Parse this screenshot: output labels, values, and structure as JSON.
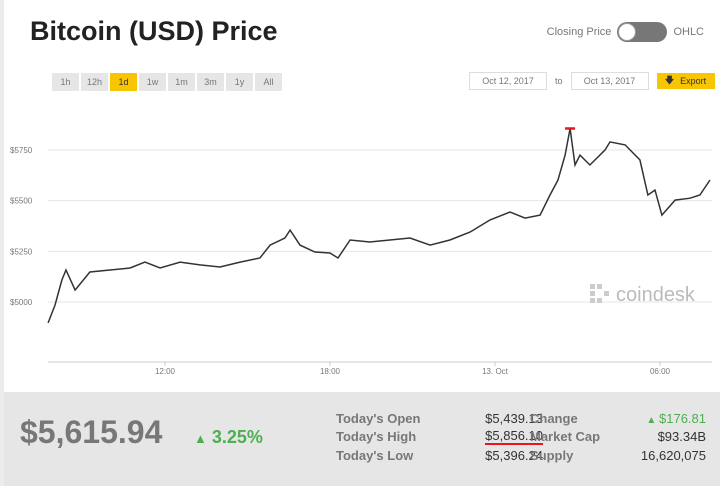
{
  "header": {
    "title": "Bitcoin (USD) Price",
    "toggle_left": "Closing Price",
    "toggle_right": "OHLC"
  },
  "ranges": [
    "1h",
    "12h",
    "1d",
    "1w",
    "1m",
    "3m",
    "1y",
    "All"
  ],
  "active_range": "1d",
  "dates": {
    "from": "Oct 12, 2017",
    "to_label": "to",
    "to": "Oct 13, 2017",
    "export": "Export"
  },
  "watermark": "coindesk",
  "colors": {
    "accent": "#f7c600",
    "up": "#4caf50",
    "highlight": "#e8141e"
  },
  "chart_data": {
    "type": "line",
    "y_ticks": [
      5000,
      5250,
      5500,
      5750
    ],
    "y_tick_labels": [
      "$5000",
      "$5250",
      "$5500",
      "$5750"
    ],
    "x_ticks": [
      12,
      18,
      24,
      30
    ],
    "x_tick_labels": [
      "12:00",
      "18:00",
      "13. Oct",
      "06:00"
    ],
    "xunit": "hours since Oct 12 00:00",
    "x": [
      7.75,
      8.0,
      8.25,
      8.4,
      8.73,
      9.27,
      10.0,
      10.73,
      11.27,
      11.82,
      12.55,
      13.27,
      14.0,
      14.73,
      15.45,
      15.82,
      16.36,
      16.55,
      16.91,
      17.45,
      18.0,
      18.29,
      18.73,
      19.45,
      20.18,
      20.91,
      21.64,
      22.36,
      23.09,
      23.82,
      24.55,
      25.09,
      25.64,
      26.0,
      26.29,
      26.55,
      26.73,
      26.91,
      27.09,
      27.45,
      28.0,
      28.18,
      28.73,
      29.27,
      29.56,
      29.82,
      30.07,
      30.55,
      31.09,
      31.45,
      31.82
    ],
    "y": [
      4897,
      4985,
      5109,
      5158,
      5059,
      5148,
      5158,
      5168,
      5197,
      5168,
      5197,
      5183,
      5173,
      5197,
      5217,
      5281,
      5316,
      5355,
      5281,
      5247,
      5242,
      5217,
      5306,
      5296,
      5306,
      5316,
      5281,
      5306,
      5345,
      5405,
      5444,
      5414,
      5429,
      5528,
      5602,
      5725,
      5856,
      5676,
      5725,
      5676,
      5750,
      5790,
      5775,
      5701,
      5528,
      5552,
      5429,
      5503,
      5512,
      5528,
      5602
    ],
    "high_marker": 5856.1
  },
  "summary": {
    "price": "$5,615.94",
    "change_pct": "3.25%",
    "stats": [
      {
        "label": "Today's Open",
        "value": "$5,439.13"
      },
      {
        "label": "Today's High",
        "value": "$5,856.10"
      },
      {
        "label": "Today's Low",
        "value": "$5,396.24"
      },
      {
        "label": "Change",
        "value": "$176.81"
      },
      {
        "label": "Market Cap",
        "value": "$93.34B"
      },
      {
        "label": "Supply",
        "value": "16,620,075"
      }
    ]
  }
}
